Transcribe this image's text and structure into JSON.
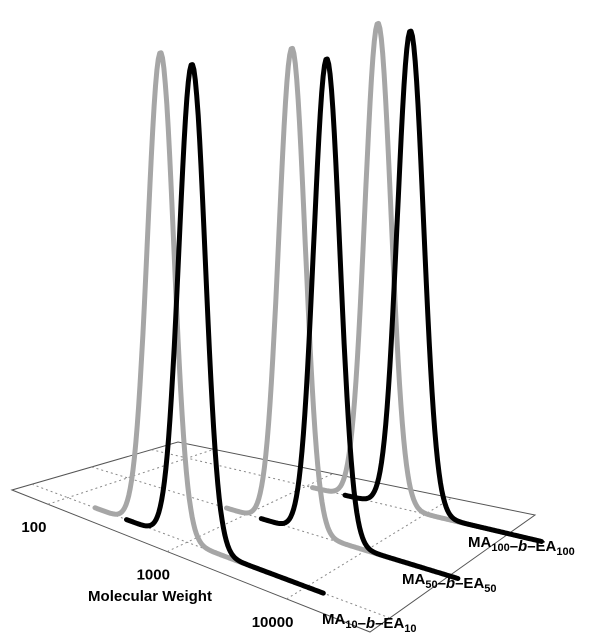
{
  "chart_data": {
    "type": "line",
    "variant": "3d-waterfall",
    "xlabel": "Molecular Weight",
    "xscale": "log",
    "x_ticks": [
      "100",
      "1000",
      "10000"
    ],
    "xlim": [
      50,
      50000
    ],
    "series_axis_labels": [
      {
        "parts": [
          {
            "t": "MA"
          },
          {
            "t": "10",
            "sub": true
          },
          {
            "t": "–"
          },
          {
            "t": "b",
            "italic": true
          },
          {
            "t": "–EA"
          },
          {
            "t": "10",
            "sub": true
          }
        ]
      },
      {
        "parts": [
          {
            "t": "MA"
          },
          {
            "t": "50",
            "sub": true
          },
          {
            "t": "–"
          },
          {
            "t": "b",
            "italic": true
          },
          {
            "t": "–EA"
          },
          {
            "t": "50",
            "sub": true
          }
        ]
      },
      {
        "parts": [
          {
            "t": "MA"
          },
          {
            "t": "100",
            "sub": true
          },
          {
            "t": "–"
          },
          {
            "t": "b",
            "italic": true
          },
          {
            "t": "–EA"
          },
          {
            "t": "100",
            "sub": true
          }
        ]
      }
    ],
    "grid": true,
    "series": [
      {
        "depth": 0,
        "color": "#a6a6a6",
        "peak_mw": 600,
        "log_width": 0.11,
        "height": 1.0
      },
      {
        "depth": 0,
        "color": "#000000",
        "peak_mw": 1100,
        "log_width": 0.11,
        "height": 1.0
      },
      {
        "depth": 1,
        "color": "#a6a6a6",
        "peak_mw": 2400,
        "log_width": 0.11,
        "height": 1.0
      },
      {
        "depth": 1,
        "color": "#000000",
        "peak_mw": 4700,
        "log_width": 0.11,
        "height": 1.0
      },
      {
        "depth": 2,
        "color": "#a6a6a6",
        "peak_mw": 4000,
        "log_width": 0.11,
        "height": 1.0
      },
      {
        "depth": 2,
        "color": "#000000",
        "peak_mw": 7500,
        "log_width": 0.11,
        "height": 1.0
      }
    ]
  }
}
